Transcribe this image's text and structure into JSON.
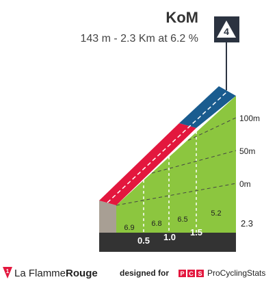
{
  "header": {
    "title": "KoM",
    "subtitle": "143 m - 2.3 Km at 6.2 %",
    "category": "4"
  },
  "profile": {
    "elevation_labels": [
      "0m",
      "50m",
      "100m"
    ],
    "gradients": [
      "6.9",
      "6.8",
      "6.5",
      "5.2"
    ],
    "km_marks": [
      "0.5",
      "1.0",
      "1.5"
    ],
    "length": "2.3"
  },
  "footer": {
    "brand_logo": "1",
    "brand_light": "La Flamme",
    "brand_bold": "Rouge",
    "designed_for": "designed for",
    "pcs_logo": [
      "P",
      "C",
      "S"
    ],
    "pcs_name": "ProCyclingStats"
  }
}
